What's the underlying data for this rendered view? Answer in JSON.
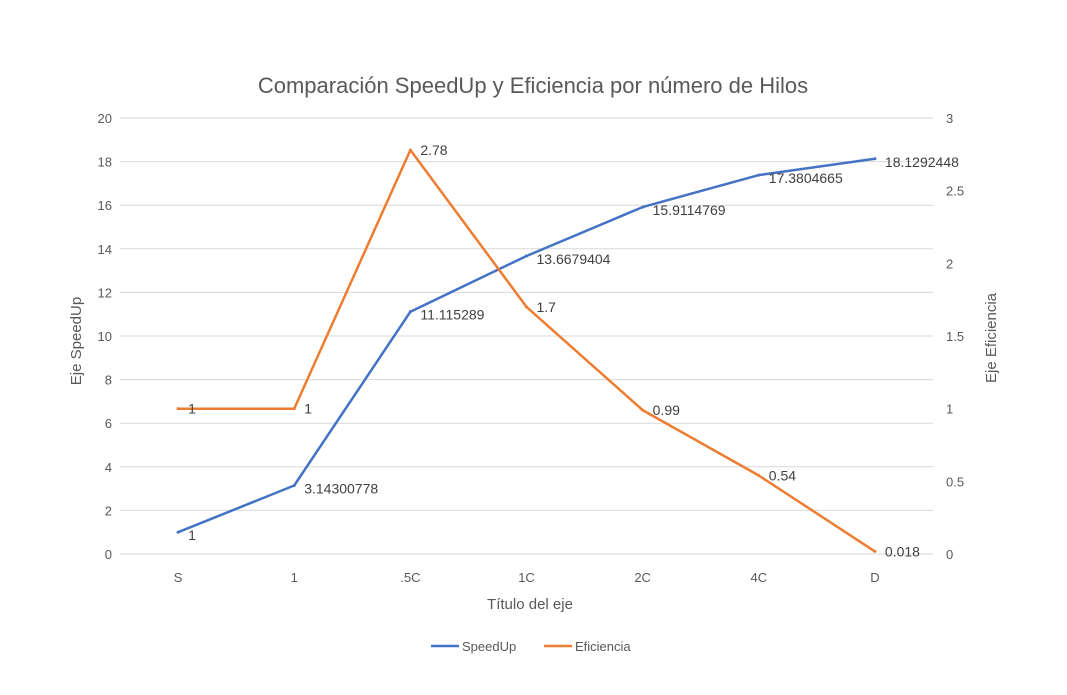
{
  "chart_data": {
    "type": "line",
    "title": "Comparación SpeedUp y Eficiencia por número de Hilos",
    "xlabel": "Título del eje",
    "ylabel": "Eje SpeedUp",
    "y2label": "Eje Eficiencia",
    "categories": [
      "S",
      "1",
      ".5C",
      "1C",
      "2C",
      "4C",
      "D"
    ],
    "ylim": [
      0,
      20
    ],
    "yticks": [
      "0",
      "2",
      "4",
      "6",
      "8",
      "10",
      "12",
      "14",
      "16",
      "18",
      "20"
    ],
    "y2lim": [
      0,
      3
    ],
    "y2ticks": [
      "0",
      "0.5",
      "1",
      "1.5",
      "2",
      "2.5",
      "3"
    ],
    "grid": true,
    "legend_position": "bottom",
    "series": [
      {
        "name": "SpeedUp",
        "axis": "left",
        "color": "#4472C4",
        "values": [
          1,
          3.14300778,
          11.115289,
          13.6679404,
          15.9114769,
          17.3804665,
          18.1292448
        ],
        "labels": [
          "1",
          "3.14300778",
          "11.115289",
          "13.6679404",
          "15.9114769",
          "17.3804665",
          "18.1292448"
        ]
      },
      {
        "name": "Eficiencia",
        "axis": "right",
        "color": "#ED7D31",
        "values": [
          1,
          1,
          2.78,
          1.7,
          0.99,
          0.54,
          0.018
        ],
        "labels": [
          "1",
          "1",
          "2.78",
          "1.7",
          "0.99",
          "0.54",
          "0.018"
        ]
      }
    ]
  }
}
